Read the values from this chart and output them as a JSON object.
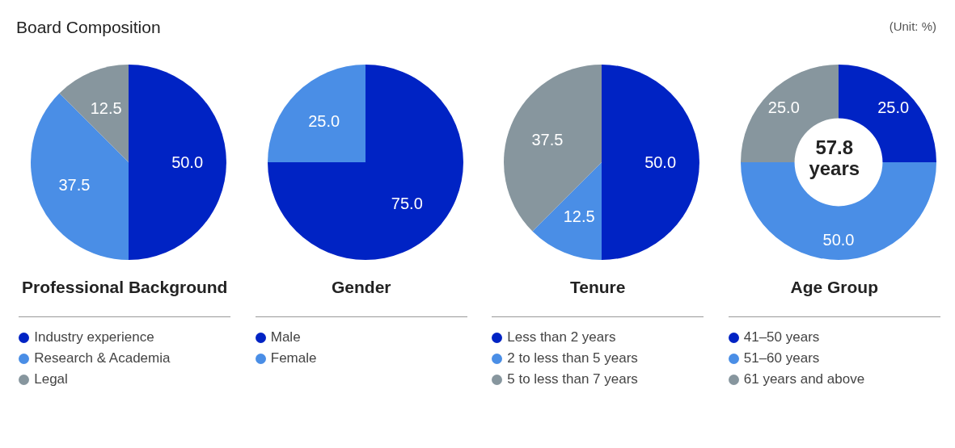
{
  "chart_data": [
    {
      "type": "pie",
      "title": "Professional Background",
      "annotations": [
        "Board Composition"
      ],
      "categories": [
        "Industry experience",
        "Research & Academia",
        "Legal"
      ],
      "values": [
        50,
        37.5,
        12.5
      ],
      "value_labels": [
        "50.0",
        "37.5",
        "12.5"
      ],
      "colors": [
        "#0023c4",
        "#4a8ee6",
        "#87969e"
      ],
      "legend": "bottom"
    },
    {
      "type": "pie",
      "title": "Gender",
      "categories": [
        "Male",
        "Female"
      ],
      "values": [
        75,
        25
      ],
      "value_labels": [
        "75.0",
        "25.0"
      ],
      "colors": [
        "#0023c4",
        "#4a8ee6"
      ],
      "legend": "bottom"
    },
    {
      "type": "pie",
      "title": "Tenure",
      "categories": [
        "Less than 2 years",
        "2 to less than 5 years",
        "5 to less than 7 years"
      ],
      "values": [
        50,
        12.5,
        37.5
      ],
      "value_labels": [
        "50.0",
        "12.5",
        "37.5"
      ],
      "colors": [
        "#0023c4",
        "#4a8ee6",
        "#87969e"
      ],
      "legend": "bottom"
    },
    {
      "type": "donut",
      "title": "Age Group",
      "annotations": [
        "(Unit: %)",
        "57.8 years"
      ],
      "categories": [
        "41–50 years",
        "51–60 years",
        "61 years and above"
      ],
      "values": [
        25,
        50,
        25
      ],
      "value_labels": [
        "25.0",
        "50.0",
        "25.0"
      ],
      "colors": [
        "#0023c4",
        "#4a8ee6",
        "#87969e"
      ],
      "legend": "bottom"
    }
  ]
}
